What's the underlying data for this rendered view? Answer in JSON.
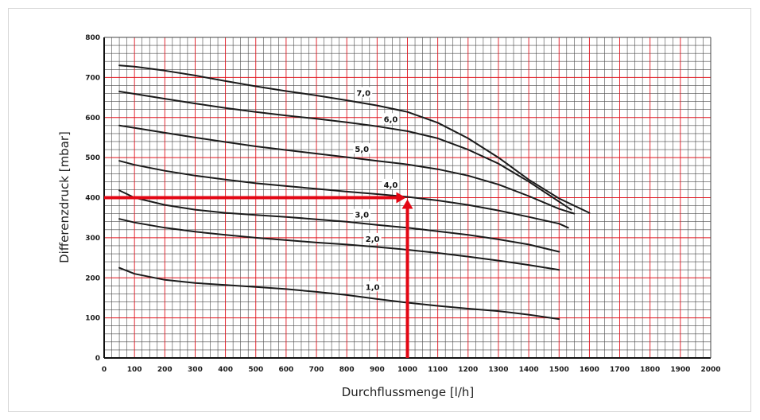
{
  "colors": {
    "minor_grid": "#4a4a4a",
    "major_grid": "#e0141e",
    "curve": "#1a1a1a",
    "marker": "#e30613",
    "frame": "#d6d6d6"
  },
  "chart_data": {
    "type": "line",
    "title": "",
    "xlabel": "Durchflussmenge [l/h]",
    "ylabel": "Differenzdruck [mbar]",
    "xlim": [
      0,
      2000
    ],
    "ylim": [
      0,
      800
    ],
    "grid": true,
    "x_ticks": [
      "0",
      "100",
      "200",
      "300",
      "400",
      "500",
      "600",
      "700",
      "800",
      "900",
      "1000",
      "1100",
      "1200",
      "1300",
      "1400",
      "1500",
      "1600",
      "1700",
      "1800",
      "1900",
      "2000"
    ],
    "y_ticks": [
      "0",
      "100",
      "200",
      "300",
      "400",
      "500",
      "600",
      "700",
      "800"
    ],
    "series": [
      {
        "name": "1,0",
        "label_at": [
          885,
          178
        ],
        "points": [
          [
            50,
            225
          ],
          [
            100,
            210
          ],
          [
            200,
            195
          ],
          [
            300,
            187
          ],
          [
            400,
            182
          ],
          [
            500,
            177
          ],
          [
            600,
            172
          ],
          [
            700,
            165
          ],
          [
            800,
            157
          ],
          [
            900,
            147
          ],
          [
            1000,
            138
          ],
          [
            1100,
            130
          ],
          [
            1200,
            123
          ],
          [
            1300,
            117
          ],
          [
            1400,
            108
          ],
          [
            1500,
            97
          ]
        ]
      },
      {
        "name": "2,0",
        "label_at": [
          885,
          298
        ],
        "points": [
          [
            50,
            347
          ],
          [
            100,
            338
          ],
          [
            200,
            325
          ],
          [
            300,
            315
          ],
          [
            400,
            307
          ],
          [
            500,
            300
          ],
          [
            600,
            294
          ],
          [
            700,
            288
          ],
          [
            800,
            283
          ],
          [
            900,
            277
          ],
          [
            1000,
            270
          ],
          [
            1100,
            262
          ],
          [
            1200,
            253
          ],
          [
            1300,
            243
          ],
          [
            1400,
            232
          ],
          [
            1500,
            220
          ]
        ]
      },
      {
        "name": "3,0",
        "label_at": [
          850,
          358
        ],
        "points": [
          [
            50,
            418
          ],
          [
            100,
            400
          ],
          [
            200,
            382
          ],
          [
            300,
            370
          ],
          [
            400,
            362
          ],
          [
            500,
            357
          ],
          [
            600,
            352
          ],
          [
            700,
            346
          ],
          [
            800,
            340
          ],
          [
            900,
            332
          ],
          [
            1000,
            325
          ],
          [
            1100,
            316
          ],
          [
            1200,
            307
          ],
          [
            1300,
            296
          ],
          [
            1400,
            283
          ],
          [
            1500,
            265
          ]
        ]
      },
      {
        "name": "4,0",
        "label_at": [
          945,
          433
        ],
        "points": [
          [
            50,
            492
          ],
          [
            100,
            482
          ],
          [
            200,
            467
          ],
          [
            300,
            455
          ],
          [
            400,
            445
          ],
          [
            500,
            436
          ],
          [
            600,
            429
          ],
          [
            700,
            422
          ],
          [
            800,
            415
          ],
          [
            900,
            409
          ],
          [
            1000,
            402
          ],
          [
            1100,
            393
          ],
          [
            1200,
            382
          ],
          [
            1300,
            368
          ],
          [
            1400,
            352
          ],
          [
            1500,
            335
          ],
          [
            1530,
            325
          ]
        ]
      },
      {
        "name": "5,0",
        "label_at": [
          850,
          522
        ],
        "points": [
          [
            50,
            580
          ],
          [
            100,
            574
          ],
          [
            200,
            562
          ],
          [
            300,
            550
          ],
          [
            400,
            539
          ],
          [
            500,
            528
          ],
          [
            600,
            519
          ],
          [
            700,
            510
          ],
          [
            800,
            501
          ],
          [
            900,
            492
          ],
          [
            1000,
            483
          ],
          [
            1100,
            471
          ],
          [
            1200,
            455
          ],
          [
            1300,
            433
          ],
          [
            1400,
            404
          ],
          [
            1500,
            372
          ],
          [
            1550,
            360
          ]
        ]
      },
      {
        "name": "6,0",
        "label_at": [
          945,
          597
        ],
        "points": [
          [
            50,
            665
          ],
          [
            100,
            659
          ],
          [
            200,
            647
          ],
          [
            300,
            635
          ],
          [
            400,
            624
          ],
          [
            500,
            614
          ],
          [
            600,
            605
          ],
          [
            700,
            597
          ],
          [
            800,
            588
          ],
          [
            900,
            578
          ],
          [
            1000,
            566
          ],
          [
            1100,
            548
          ],
          [
            1200,
            520
          ],
          [
            1300,
            485
          ],
          [
            1400,
            440
          ],
          [
            1500,
            390
          ],
          [
            1540,
            370
          ]
        ]
      },
      {
        "name": "7,0",
        "label_at": [
          855,
          662
        ],
        "points": [
          [
            50,
            730
          ],
          [
            100,
            727
          ],
          [
            200,
            717
          ],
          [
            300,
            705
          ],
          [
            400,
            691
          ],
          [
            500,
            678
          ],
          [
            600,
            666
          ],
          [
            700,
            655
          ],
          [
            800,
            643
          ],
          [
            900,
            630
          ],
          [
            1000,
            614
          ],
          [
            1100,
            587
          ],
          [
            1200,
            548
          ],
          [
            1300,
            500
          ],
          [
            1400,
            445
          ],
          [
            1500,
            398
          ],
          [
            1600,
            362
          ]
        ]
      }
    ],
    "operating_point": {
      "flow": 1000,
      "pressure": 400
    }
  }
}
